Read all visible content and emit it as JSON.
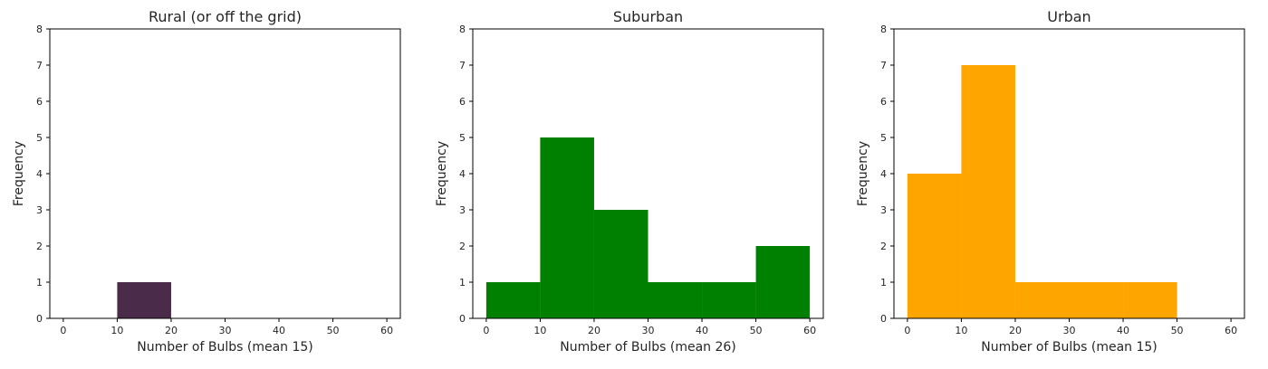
{
  "chart_data": [
    {
      "type": "bar",
      "title": "Rural (or off the grid)",
      "xlabel": "Number of Bulbs (mean 15)",
      "ylabel": "Frequency",
      "xlim": [
        -2.5,
        62.5
      ],
      "ylim": [
        0,
        8
      ],
      "xticks": [
        "0",
        "10",
        "20",
        "30",
        "40",
        "50",
        "60"
      ],
      "yticks": [
        "0",
        "1",
        "2",
        "3",
        "4",
        "5",
        "6",
        "7",
        "8"
      ],
      "color": "#4a2b4a",
      "bins": [
        {
          "start": 10,
          "end": 20,
          "count": 1
        }
      ]
    },
    {
      "type": "bar",
      "title": "Suburban",
      "xlabel": "Number of Bulbs (mean 26)",
      "ylabel": "Frequency",
      "xlim": [
        -2.5,
        62.5
      ],
      "ylim": [
        0,
        8
      ],
      "xticks": [
        "0",
        "10",
        "20",
        "30",
        "40",
        "50",
        "60"
      ],
      "yticks": [
        "0",
        "1",
        "2",
        "3",
        "4",
        "5",
        "6",
        "7",
        "8"
      ],
      "color": "#008000",
      "bins": [
        {
          "start": 0,
          "end": 10,
          "count": 1
        },
        {
          "start": 10,
          "end": 20,
          "count": 5
        },
        {
          "start": 20,
          "end": 30,
          "count": 3
        },
        {
          "start": 30,
          "end": 40,
          "count": 1
        },
        {
          "start": 40,
          "end": 50,
          "count": 1
        },
        {
          "start": 50,
          "end": 60,
          "count": 2
        }
      ]
    },
    {
      "type": "bar",
      "title": "Urban",
      "xlabel": "Number of Bulbs (mean 15)",
      "ylabel": "Frequency",
      "xlim": [
        -2.5,
        62.5
      ],
      "ylim": [
        0,
        8
      ],
      "xticks": [
        "0",
        "10",
        "20",
        "30",
        "40",
        "50",
        "60"
      ],
      "yticks": [
        "0",
        "1",
        "2",
        "3",
        "4",
        "5",
        "6",
        "7",
        "8"
      ],
      "color": "#ffa500",
      "bins": [
        {
          "start": 0,
          "end": 10,
          "count": 4
        },
        {
          "start": 10,
          "end": 20,
          "count": 7
        },
        {
          "start": 20,
          "end": 30,
          "count": 1
        },
        {
          "start": 30,
          "end": 40,
          "count": 1
        },
        {
          "start": 40,
          "end": 50,
          "count": 1
        }
      ]
    }
  ]
}
